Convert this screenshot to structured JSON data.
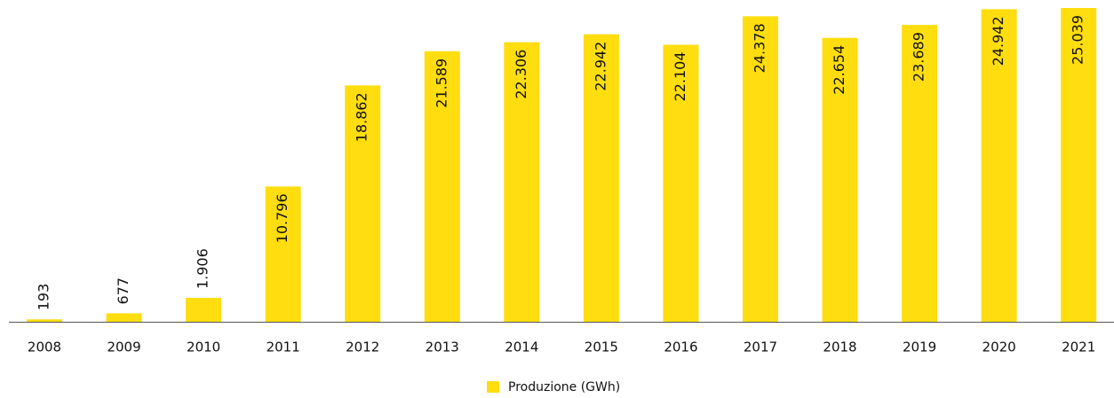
{
  "chart_data": {
    "type": "bar",
    "categories": [
      "2008",
      "2009",
      "2010",
      "2011",
      "2012",
      "2013",
      "2014",
      "2015",
      "2016",
      "2017",
      "2018",
      "2019",
      "2020",
      "2021"
    ],
    "series": [
      {
        "name": "Produzione (GWh)",
        "color": "#ffdd0f",
        "values": [
          193,
          677,
          1906,
          10796,
          18862,
          21589,
          22306,
          22942,
          22104,
          24378,
          22654,
          23689,
          24942,
          25039
        ],
        "value_labels": [
          "193",
          "677",
          "1.906",
          "10.796",
          "18.862",
          "21.589",
          "22.306",
          "22.942",
          "22.104",
          "24.378",
          "22.654",
          "23.689",
          "24.942",
          "25.039"
        ]
      }
    ]
  }
}
